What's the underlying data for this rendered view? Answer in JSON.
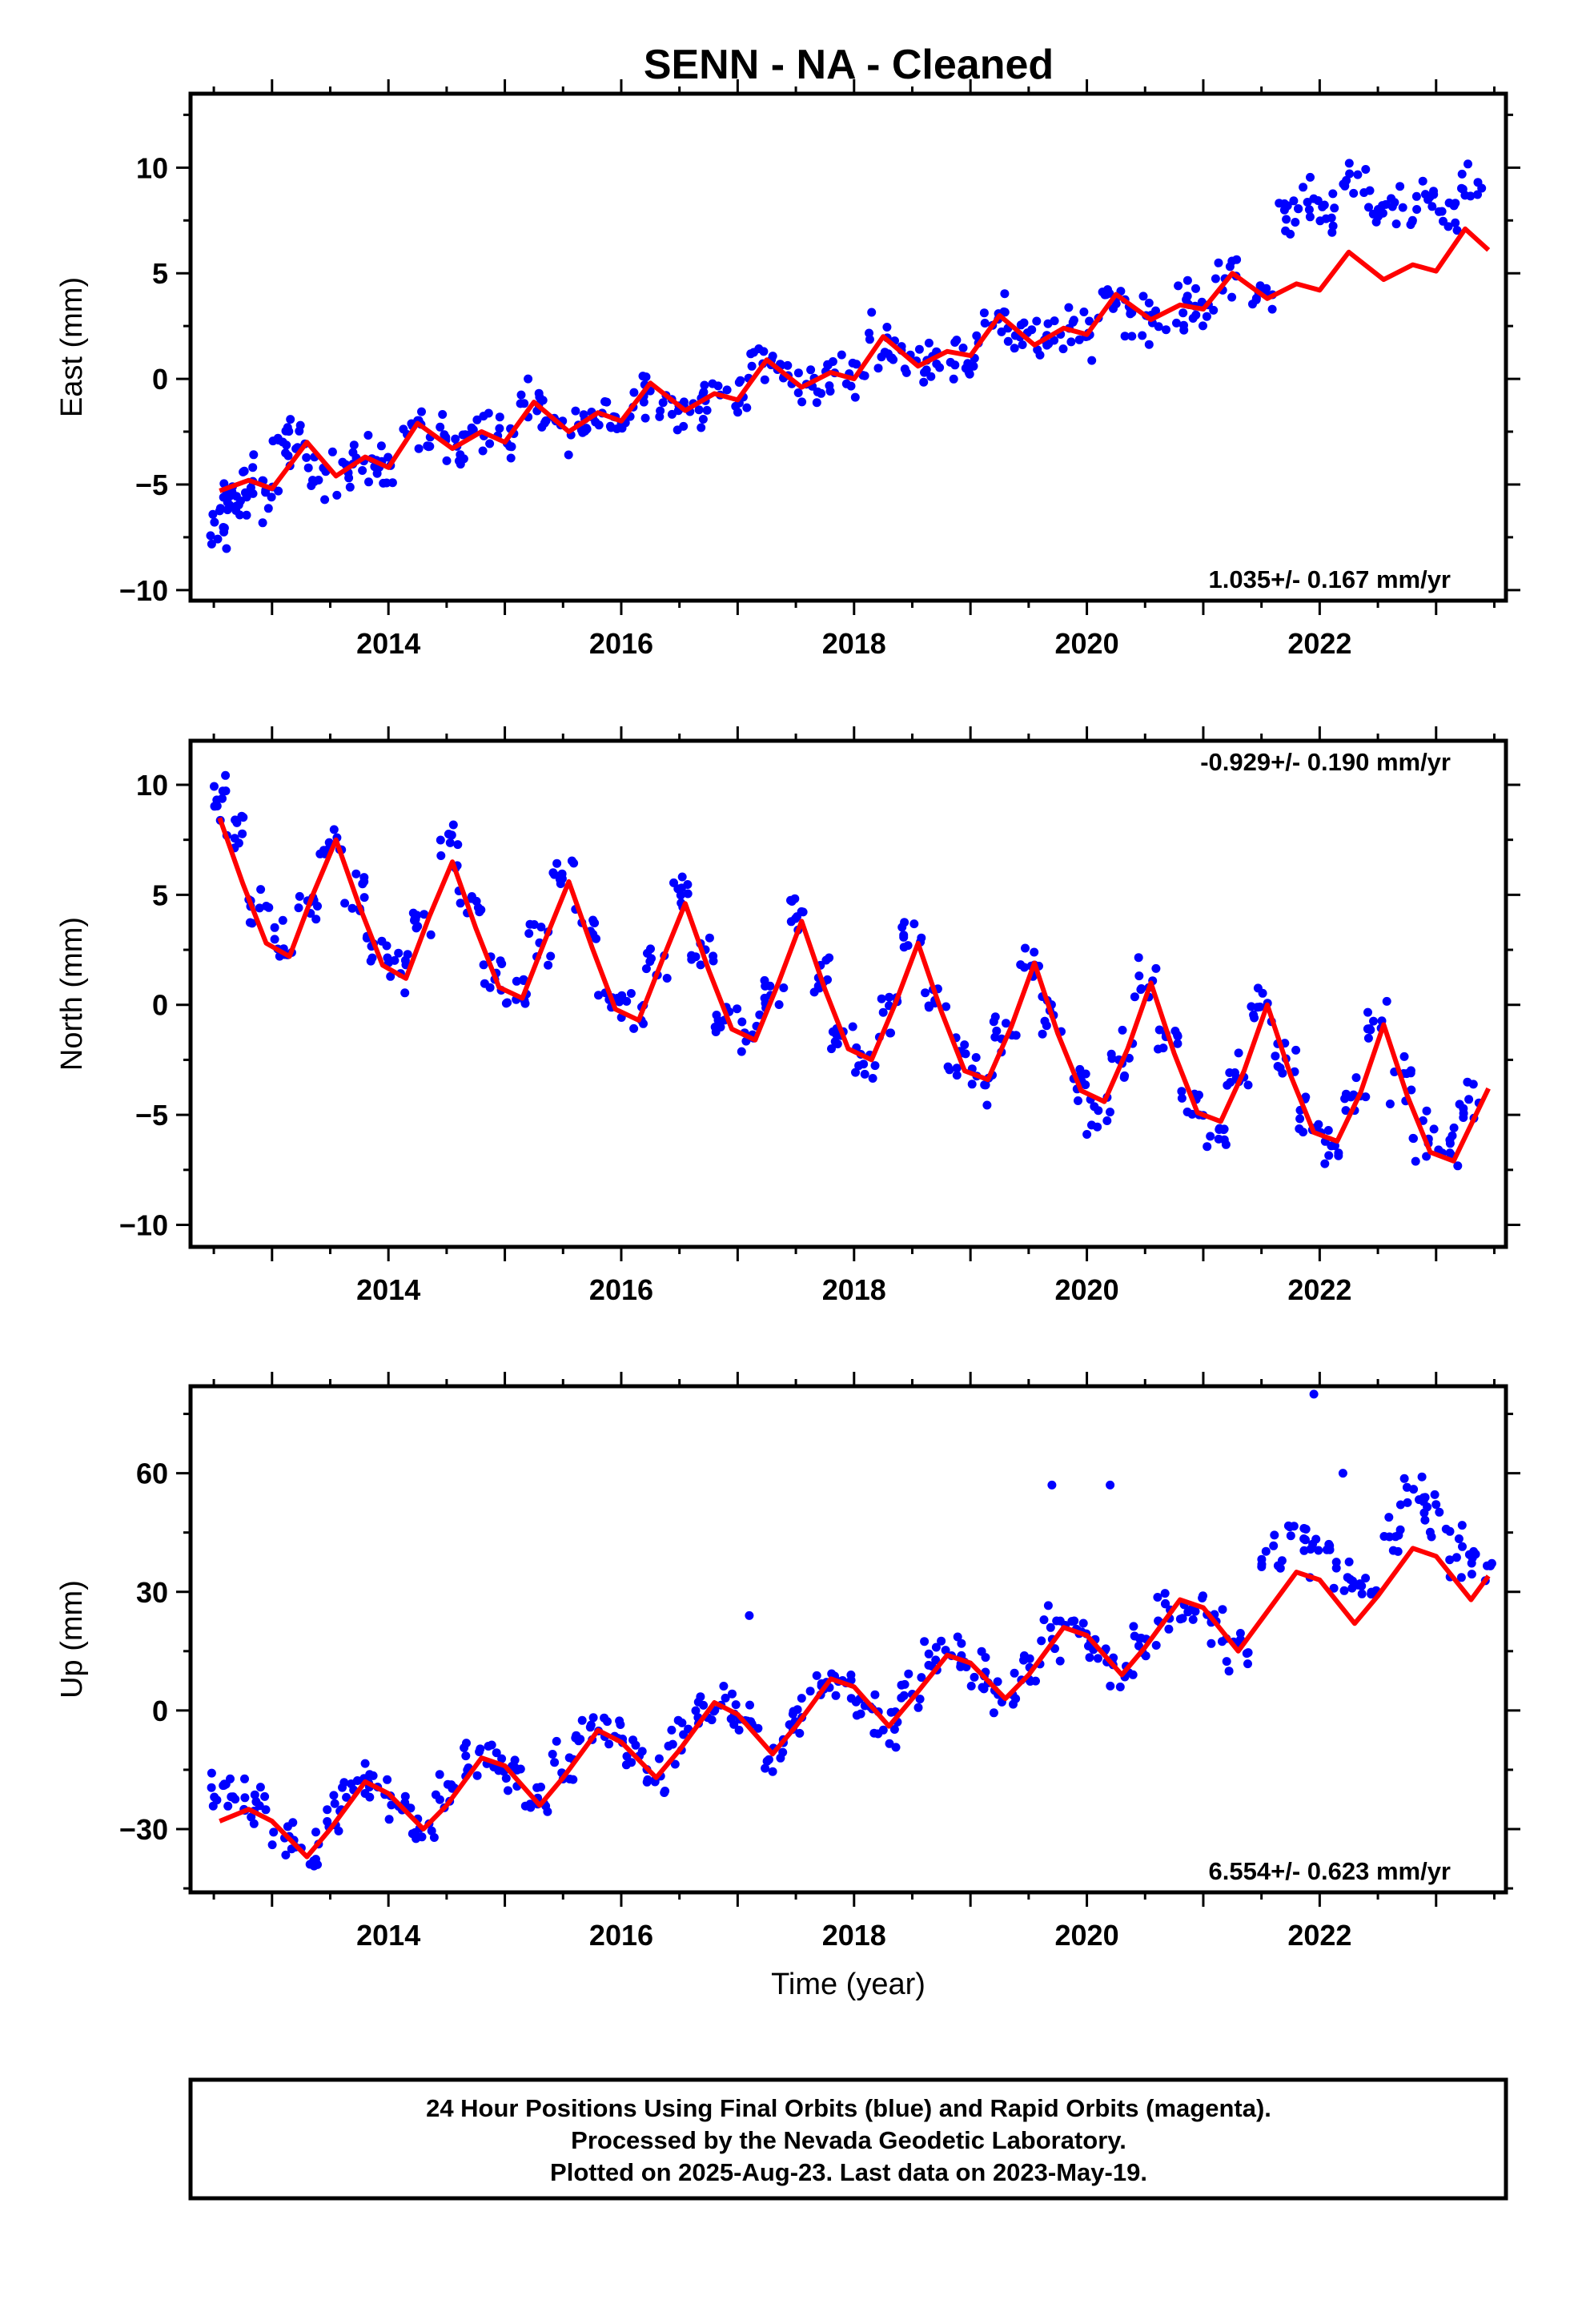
{
  "title": "SENN  - NA - Cleaned",
  "colors": {
    "points": "#0000ff",
    "fit": "#ff0000",
    "frame": "#000000"
  },
  "chart_data": [
    {
      "type": "scatter",
      "name": "east",
      "ylabel": "East (mm)",
      "xlabel": "",
      "xlim": [
        2012.3,
        2023.6
      ],
      "ylim": [
        -10.5,
        13.5
      ],
      "x_ticks": [
        2014,
        2016,
        2018,
        2020,
        2022
      ],
      "y_ticks": [
        -10,
        -5,
        0,
        5,
        10
      ],
      "rate_text": "1.035+/- 0.167 mm/yr",
      "rate_position": "bottom-right",
      "points": [
        [
          2012.55,
          -7.5
        ],
        [
          2012.6,
          -5.5
        ],
        [
          2012.7,
          -6.2
        ],
        [
          2012.8,
          -4.8
        ],
        [
          2013.0,
          -5.6
        ],
        [
          2013.1,
          -3.2
        ],
        [
          2013.2,
          -3.0
        ],
        [
          2013.4,
          -4.6
        ],
        [
          2013.6,
          -4.4
        ],
        [
          2013.8,
          -3.8
        ],
        [
          2014.0,
          -3.9
        ],
        [
          2014.2,
          -2.2
        ],
        [
          2014.4,
          -2.7
        ],
        [
          2014.6,
          -3.2
        ],
        [
          2014.8,
          -2.5
        ],
        [
          2015.0,
          -2.8
        ],
        [
          2015.2,
          -1.3
        ],
        [
          2015.4,
          -2.1
        ],
        [
          2015.6,
          -2.3
        ],
        [
          2015.8,
          -1.8
        ],
        [
          2016.0,
          -2.0
        ],
        [
          2016.2,
          -0.5
        ],
        [
          2016.4,
          -1.2
        ],
        [
          2016.6,
          -1.5
        ],
        [
          2016.8,
          -0.8
        ],
        [
          2017.0,
          -1.0
        ],
        [
          2017.2,
          0.9
        ],
        [
          2017.4,
          0.2
        ],
        [
          2017.6,
          -0.3
        ],
        [
          2017.8,
          0.3
        ],
        [
          2018.0,
          0.0
        ],
        [
          2018.2,
          1.9
        ],
        [
          2018.4,
          1.2
        ],
        [
          2018.6,
          0.7
        ],
        [
          2018.8,
          1.3
        ],
        [
          2019.0,
          1.1
        ],
        [
          2019.2,
          3.0
        ],
        [
          2019.4,
          2.2
        ],
        [
          2019.6,
          1.7
        ],
        [
          2019.8,
          2.4
        ],
        [
          2020.0,
          2.1
        ],
        [
          2020.2,
          4.0
        ],
        [
          2020.4,
          3.2
        ],
        [
          2020.6,
          2.8
        ],
        [
          2020.8,
          3.4
        ],
        [
          2021.0,
          3.2
        ],
        [
          2021.2,
          5.0
        ],
        [
          2021.5,
          4.0
        ],
        [
          2021.7,
          8.0
        ],
        [
          2021.9,
          8.5
        ],
        [
          2022.1,
          7.5
        ],
        [
          2022.3,
          9.0
        ],
        [
          2022.5,
          8.3
        ],
        [
          2022.7,
          8.0
        ],
        [
          2022.9,
          8.6
        ],
        [
          2023.1,
          8.2
        ],
        [
          2023.3,
          9.0
        ]
      ],
      "fit": [
        [
          2012.55,
          -5.3
        ],
        [
          2012.8,
          -4.8
        ],
        [
          2013.0,
          -5.2
        ],
        [
          2013.3,
          -3.0
        ],
        [
          2013.55,
          -4.6
        ],
        [
          2013.8,
          -3.7
        ],
        [
          2014.0,
          -4.2
        ],
        [
          2014.25,
          -2.1
        ],
        [
          2014.55,
          -3.3
        ],
        [
          2014.8,
          -2.5
        ],
        [
          2015.0,
          -3.0
        ],
        [
          2015.25,
          -1.1
        ],
        [
          2015.55,
          -2.5
        ],
        [
          2015.8,
          -1.6
        ],
        [
          2016.0,
          -2.0
        ],
        [
          2016.25,
          -0.2
        ],
        [
          2016.55,
          -1.5
        ],
        [
          2016.8,
          -0.7
        ],
        [
          2017.0,
          -1.0
        ],
        [
          2017.25,
          0.9
        ],
        [
          2017.55,
          -0.4
        ],
        [
          2017.8,
          0.3
        ],
        [
          2018.0,
          0.0
        ],
        [
          2018.25,
          2.0
        ],
        [
          2018.55,
          0.6
        ],
        [
          2018.8,
          1.3
        ],
        [
          2019.0,
          1.1
        ],
        [
          2019.25,
          3.0
        ],
        [
          2019.55,
          1.6
        ],
        [
          2019.8,
          2.4
        ],
        [
          2020.0,
          2.1
        ],
        [
          2020.25,
          4.0
        ],
        [
          2020.55,
          2.8
        ],
        [
          2020.8,
          3.5
        ],
        [
          2021.0,
          3.3
        ],
        [
          2021.25,
          5.0
        ],
        [
          2021.55,
          3.8
        ],
        [
          2021.8,
          4.5
        ],
        [
          2022.0,
          4.2
        ],
        [
          2022.25,
          6.0
        ],
        [
          2022.55,
          4.7
        ],
        [
          2022.8,
          5.4
        ],
        [
          2023.0,
          5.1
        ],
        [
          2023.25,
          7.1
        ],
        [
          2023.45,
          6.1
        ]
      ]
    },
    {
      "type": "scatter",
      "name": "north",
      "ylabel": "North (mm)",
      "xlabel": "",
      "xlim": [
        2012.3,
        2023.6
      ],
      "ylim": [
        -11,
        12
      ],
      "x_ticks": [
        2014,
        2016,
        2018,
        2020,
        2022
      ],
      "y_ticks": [
        -10,
        -5,
        0,
        5,
        10
      ],
      "rate_text": "-0.929+/- 0.190 mm/yr",
      "rate_position": "top-right",
      "points": [
        [
          2012.55,
          9.5
        ],
        [
          2012.7,
          7.5
        ],
        [
          2012.9,
          4.5
        ],
        [
          2013.1,
          2.5
        ],
        [
          2013.3,
          4.5
        ],
        [
          2013.5,
          7.5
        ],
        [
          2013.7,
          5.0
        ],
        [
          2013.9,
          2.5
        ],
        [
          2014.1,
          1.5
        ],
        [
          2014.3,
          3.5
        ],
        [
          2014.5,
          7.0
        ],
        [
          2014.7,
          4.5
        ],
        [
          2014.9,
          1.5
        ],
        [
          2015.1,
          0.5
        ],
        [
          2015.3,
          2.5
        ],
        [
          2015.5,
          6.0
        ],
        [
          2015.7,
          3.5
        ],
        [
          2015.9,
          0.5
        ],
        [
          2016.1,
          -0.5
        ],
        [
          2016.3,
          1.5
        ],
        [
          2016.5,
          5.0
        ],
        [
          2016.7,
          2.5
        ],
        [
          2016.9,
          -0.5
        ],
        [
          2017.1,
          -1.5
        ],
        [
          2017.3,
          0.5
        ],
        [
          2017.5,
          4.0
        ],
        [
          2017.7,
          1.5
        ],
        [
          2017.9,
          -1.5
        ],
        [
          2018.1,
          -2.5
        ],
        [
          2018.3,
          -0.5
        ],
        [
          2018.5,
          3.0
        ],
        [
          2018.7,
          0.5
        ],
        [
          2018.9,
          -2.5
        ],
        [
          2019.1,
          -3.5
        ],
        [
          2019.3,
          -1.5
        ],
        [
          2019.5,
          2.0
        ],
        [
          2019.7,
          -0.5
        ],
        [
          2019.9,
          -3.5
        ],
        [
          2020.1,
          -5.0
        ],
        [
          2020.3,
          -2.5
        ],
        [
          2020.5,
          1.0
        ],
        [
          2020.7,
          -1.5
        ],
        [
          2020.9,
          -4.5
        ],
        [
          2021.1,
          -6.0
        ],
        [
          2021.3,
          -3.5
        ],
        [
          2021.5,
          0.0
        ],
        [
          2021.7,
          -2.5
        ],
        [
          2021.9,
          -5.0
        ],
        [
          2022.1,
          -6.5
        ],
        [
          2022.3,
          -4.0
        ],
        [
          2022.5,
          -0.5
        ],
        [
          2022.7,
          -3.5
        ],
        [
          2022.9,
          -6.0
        ],
        [
          2023.1,
          -6.5
        ],
        [
          2023.3,
          -4.5
        ]
      ],
      "fit": [
        [
          2012.55,
          8.5
        ],
        [
          2012.75,
          5.5
        ],
        [
          2012.95,
          2.8
        ],
        [
          2013.15,
          2.2
        ],
        [
          2013.35,
          5.0
        ],
        [
          2013.55,
          7.5
        ],
        [
          2013.75,
          4.5
        ],
        [
          2013.95,
          1.8
        ],
        [
          2014.15,
          1.2
        ],
        [
          2014.35,
          4.0
        ],
        [
          2014.55,
          6.5
        ],
        [
          2014.75,
          3.5
        ],
        [
          2014.95,
          0.8
        ],
        [
          2015.15,
          0.3
        ],
        [
          2015.35,
          3.0
        ],
        [
          2015.55,
          5.6
        ],
        [
          2015.75,
          2.6
        ],
        [
          2015.95,
          -0.2
        ],
        [
          2016.15,
          -0.7
        ],
        [
          2016.35,
          2.0
        ],
        [
          2016.55,
          4.6
        ],
        [
          2016.75,
          1.6
        ],
        [
          2016.95,
          -1.1
        ],
        [
          2017.15,
          -1.6
        ],
        [
          2017.35,
          1.0
        ],
        [
          2017.55,
          3.8
        ],
        [
          2017.75,
          0.7
        ],
        [
          2017.95,
          -2.0
        ],
        [
          2018.15,
          -2.5
        ],
        [
          2018.35,
          0.0
        ],
        [
          2018.55,
          2.8
        ],
        [
          2018.75,
          -0.3
        ],
        [
          2018.95,
          -3.0
        ],
        [
          2019.15,
          -3.4
        ],
        [
          2019.35,
          -1.0
        ],
        [
          2019.55,
          1.9
        ],
        [
          2019.75,
          -1.3
        ],
        [
          2019.95,
          -3.9
        ],
        [
          2020.15,
          -4.4
        ],
        [
          2020.35,
          -2.0
        ],
        [
          2020.55,
          1.0
        ],
        [
          2020.75,
          -2.2
        ],
        [
          2020.95,
          -4.9
        ],
        [
          2021.15,
          -5.3
        ],
        [
          2021.35,
          -3.0
        ],
        [
          2021.55,
          0.0
        ],
        [
          2021.75,
          -3.2
        ],
        [
          2021.95,
          -5.8
        ],
        [
          2022.15,
          -6.2
        ],
        [
          2022.35,
          -4.0
        ],
        [
          2022.55,
          -0.9
        ],
        [
          2022.75,
          -4.1
        ],
        [
          2022.95,
          -6.7
        ],
        [
          2023.15,
          -7.1
        ],
        [
          2023.45,
          -3.8
        ]
      ]
    },
    {
      "type": "scatter",
      "name": "up",
      "ylabel": "Up (mm)",
      "xlabel": "Time (year)",
      "xlim": [
        2012.3,
        2023.6
      ],
      "ylim": [
        -46,
        82
      ],
      "x_ticks": [
        2014,
        2016,
        2018,
        2020,
        2022
      ],
      "y_ticks": [
        -30,
        0,
        30,
        60
      ],
      "rate_text": "6.554+/- 0.623 mm/yr",
      "rate_position": "bottom-right",
      "points": [
        [
          2012.55,
          -22
        ],
        [
          2012.7,
          -20
        ],
        [
          2012.9,
          -24
        ],
        [
          2013.1,
          -32
        ],
        [
          2013.3,
          -36
        ],
        [
          2013.5,
          -25
        ],
        [
          2013.7,
          -18
        ],
        [
          2013.9,
          -17
        ],
        [
          2014.1,
          -24
        ],
        [
          2014.3,
          -30
        ],
        [
          2014.5,
          -20
        ],
        [
          2014.7,
          -12
        ],
        [
          2014.9,
          -12
        ],
        [
          2015.1,
          -18
        ],
        [
          2015.3,
          -24
        ],
        [
          2015.5,
          -14
        ],
        [
          2015.7,
          -5
        ],
        [
          2015.9,
          -5
        ],
        [
          2016.1,
          -11
        ],
        [
          2016.3,
          -17
        ],
        [
          2016.5,
          -8
        ],
        [
          2016.7,
          1
        ],
        [
          2016.9,
          1
        ],
        [
          2017.1,
          -5
        ],
        [
          2017.3,
          -11
        ],
        [
          2017.5,
          -1
        ],
        [
          2017.7,
          7
        ],
        [
          2017.9,
          7
        ],
        [
          2018.1,
          1
        ],
        [
          2018.3,
          -4
        ],
        [
          2018.5,
          5
        ],
        [
          2018.7,
          14
        ],
        [
          2018.9,
          14
        ],
        [
          2019.1,
          8
        ],
        [
          2019.3,
          3
        ],
        [
          2019.5,
          12
        ],
        [
          2019.7,
          20
        ],
        [
          2019.9,
          21
        ],
        [
          2020.1,
          15
        ],
        [
          2020.3,
          9
        ],
        [
          2020.5,
          18
        ],
        [
          2020.7,
          26
        ],
        [
          2020.9,
          27
        ],
        [
          2021.1,
          21
        ],
        [
          2021.3,
          15
        ],
        [
          2021.6,
          40
        ],
        [
          2021.8,
          44
        ],
        [
          2022.0,
          40
        ],
        [
          2022.2,
          33
        ],
        [
          2022.4,
          30
        ],
        [
          2022.6,
          45
        ],
        [
          2022.8,
          55
        ],
        [
          2023.0,
          50
        ],
        [
          2023.2,
          40
        ],
        [
          2023.4,
          38
        ]
      ],
      "outliers": [
        [
          2017.1,
          24
        ],
        [
          2019.7,
          57
        ],
        [
          2020.2,
          57
        ],
        [
          2021.95,
          80
        ],
        [
          2022.2,
          60
        ]
      ],
      "fit": [
        [
          2012.55,
          -28
        ],
        [
          2012.8,
          -25
        ],
        [
          2013.0,
          -28
        ],
        [
          2013.3,
          -37
        ],
        [
          2013.5,
          -30
        ],
        [
          2013.8,
          -18
        ],
        [
          2014.0,
          -21
        ],
        [
          2014.3,
          -30
        ],
        [
          2014.5,
          -24
        ],
        [
          2014.8,
          -12
        ],
        [
          2015.0,
          -14
        ],
        [
          2015.3,
          -24
        ],
        [
          2015.5,
          -17
        ],
        [
          2015.8,
          -5
        ],
        [
          2016.0,
          -8
        ],
        [
          2016.3,
          -17
        ],
        [
          2016.5,
          -10
        ],
        [
          2016.8,
          2
        ],
        [
          2017.0,
          -1
        ],
        [
          2017.3,
          -11
        ],
        [
          2017.5,
          -4
        ],
        [
          2017.8,
          8
        ],
        [
          2018.0,
          6
        ],
        [
          2018.3,
          -4
        ],
        [
          2018.5,
          3
        ],
        [
          2018.8,
          14
        ],
        [
          2019.0,
          12
        ],
        [
          2019.3,
          3
        ],
        [
          2019.5,
          9
        ],
        [
          2019.8,
          21
        ],
        [
          2020.0,
          19
        ],
        [
          2020.3,
          9
        ],
        [
          2020.5,
          16
        ],
        [
          2020.8,
          28
        ],
        [
          2021.0,
          26
        ],
        [
          2021.3,
          15
        ],
        [
          2021.5,
          23
        ],
        [
          2021.8,
          35
        ],
        [
          2022.0,
          33
        ],
        [
          2022.3,
          22
        ],
        [
          2022.5,
          29
        ],
        [
          2022.8,
          41
        ],
        [
          2023.0,
          39
        ],
        [
          2023.3,
          28
        ],
        [
          2023.45,
          34
        ]
      ]
    }
  ],
  "footer": {
    "line1": "24 Hour Positions Using Final Orbits (blue) and Rapid Orbits (magenta).",
    "line2": "Processed by the Nevada Geodetic Laboratory.",
    "line3": "Plotted on 2025-Aug-23. Last data on 2023-May-19."
  }
}
